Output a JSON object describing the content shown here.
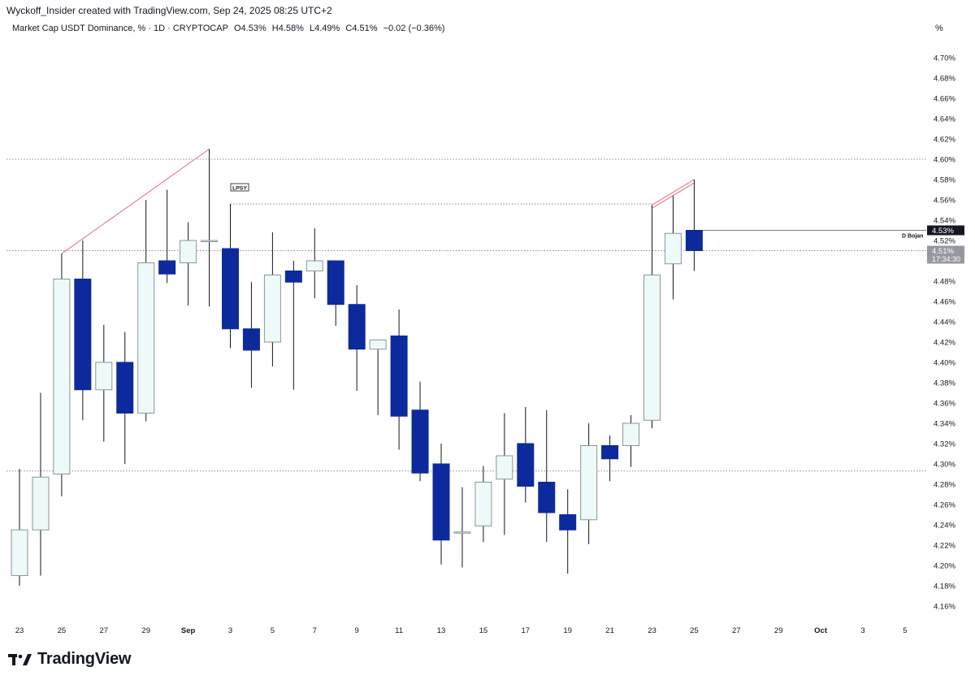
{
  "header": {
    "attribution": "Wyckoff_Insider created with TradingView.com, Sep 24, 2025 08:25 UTC+2"
  },
  "legend": {
    "symbol": "Market Cap USDT Dominance, % · 1D · CRYPTOCAP",
    "open": "O4.53%",
    "high": "H4.58%",
    "low": "L4.49%",
    "close": "C4.51%",
    "change": "−0.02 (−0.36%)"
  },
  "unit_label": "%",
  "footer": {
    "brand": "TradingView"
  },
  "colors": {
    "bull_fill": "#eef9f9",
    "bull_border": "#8a9698",
    "bear_fill": "#0d2a9c",
    "wick": "#131722",
    "trendline": "#e8808e",
    "dotted": "#8d8d96"
  },
  "chart_data": {
    "type": "candlestick",
    "ylim": [
      4.15,
      4.72
    ],
    "y_ticks": [
      "4.16%",
      "4.18%",
      "4.20%",
      "4.22%",
      "4.24%",
      "4.26%",
      "4.28%",
      "4.30%",
      "4.32%",
      "4.34%",
      "4.36%",
      "4.38%",
      "4.40%",
      "4.42%",
      "4.44%",
      "4.46%",
      "4.48%",
      "4.52%",
      "4.54%",
      "4.56%",
      "4.58%",
      "4.60%",
      "4.62%",
      "4.64%",
      "4.66%",
      "4.68%",
      "4.70%"
    ],
    "x_ticks": [
      "23",
      "25",
      "27",
      "29",
      "Sep",
      "3",
      "5",
      "7",
      "9",
      "11",
      "13",
      "15",
      "17",
      "19",
      "21",
      "23",
      "25",
      "27",
      "29",
      "Oct",
      "3",
      "5"
    ],
    "candles": [
      {
        "date": "Aug 23",
        "o": 4.19,
        "h": 4.295,
        "l": 4.18,
        "c": 4.235
      },
      {
        "date": "Aug 24",
        "o": 4.235,
        "h": 4.37,
        "l": 4.19,
        "c": 4.287
      },
      {
        "date": "Aug 25",
        "o": 4.29,
        "h": 4.507,
        "l": 4.268,
        "c": 4.482
      },
      {
        "date": "Aug 26",
        "o": 4.482,
        "h": 4.52,
        "l": 4.343,
        "c": 4.373
      },
      {
        "date": "Aug 27",
        "o": 4.373,
        "h": 4.437,
        "l": 4.322,
        "c": 4.4
      },
      {
        "date": "Aug 28",
        "o": 4.4,
        "h": 4.43,
        "l": 4.3,
        "c": 4.35
      },
      {
        "date": "Aug 29",
        "o": 4.35,
        "h": 4.56,
        "l": 4.342,
        "c": 4.498
      },
      {
        "date": "Aug 30",
        "o": 4.5,
        "h": 4.57,
        "l": 4.478,
        "c": 4.487
      },
      {
        "date": "Aug 31",
        "o": 4.498,
        "h": 4.538,
        "l": 4.456,
        "c": 4.52
      },
      {
        "date": "Sep 1",
        "o": 4.52,
        "h": 4.61,
        "l": 4.455,
        "c": 4.52
      },
      {
        "date": "Sep 2",
        "o": 4.512,
        "h": 4.556,
        "l": 4.414,
        "c": 4.433
      },
      {
        "date": "Sep 3",
        "o": 4.433,
        "h": 4.479,
        "l": 4.375,
        "c": 4.412
      },
      {
        "date": "Sep 4",
        "o": 4.42,
        "h": 4.528,
        "l": 4.396,
        "c": 4.486
      },
      {
        "date": "Sep 5",
        "o": 4.49,
        "h": 4.5,
        "l": 4.373,
        "c": 4.479
      },
      {
        "date": "Sep 6",
        "o": 4.49,
        "h": 4.532,
        "l": 4.463,
        "c": 4.5
      },
      {
        "date": "Sep 7",
        "o": 4.5,
        "h": 4.5,
        "l": 4.436,
        "c": 4.457
      },
      {
        "date": "Sep 8",
        "o": 4.457,
        "h": 4.476,
        "l": 4.372,
        "c": 4.413
      },
      {
        "date": "Sep 9",
        "o": 4.413,
        "h": 4.42,
        "l": 4.348,
        "c": 4.422
      },
      {
        "date": "Sep 10",
        "o": 4.426,
        "h": 4.452,
        "l": 4.314,
        "c": 4.347
      },
      {
        "date": "Sep 11",
        "o": 4.353,
        "h": 4.381,
        "l": 4.283,
        "c": 4.291
      },
      {
        "date": "Sep 12",
        "o": 4.3,
        "h": 4.32,
        "l": 4.201,
        "c": 4.225
      },
      {
        "date": "Sep 13",
        "o": 4.233,
        "h": 4.277,
        "l": 4.198,
        "c": 4.233
      },
      {
        "date": "Sep 14",
        "o": 4.239,
        "h": 4.298,
        "l": 4.223,
        "c": 4.282
      },
      {
        "date": "Sep 15",
        "o": 4.285,
        "h": 4.35,
        "l": 4.23,
        "c": 4.308
      },
      {
        "date": "Sep 16",
        "o": 4.32,
        "h": 4.356,
        "l": 4.262,
        "c": 4.278
      },
      {
        "date": "Sep 17",
        "o": 4.282,
        "h": 4.353,
        "l": 4.223,
        "c": 4.252
      },
      {
        "date": "Sep 18",
        "o": 4.25,
        "h": 4.275,
        "l": 4.192,
        "c": 4.235
      },
      {
        "date": "Sep 19",
        "o": 4.245,
        "h": 4.34,
        "l": 4.221,
        "c": 4.318
      },
      {
        "date": "Sep 20",
        "o": 4.318,
        "h": 4.328,
        "l": 4.283,
        "c": 4.305
      },
      {
        "date": "Sep 21",
        "o": 4.318,
        "h": 4.348,
        "l": 4.297,
        "c": 4.34
      },
      {
        "date": "Sep 22",
        "o": 4.343,
        "h": 4.555,
        "l": 4.335,
        "c": 4.486
      },
      {
        "date": "Sep 23",
        "o": 4.497,
        "h": 4.564,
        "l": 4.462,
        "c": 4.527
      },
      {
        "date": "Sep 24",
        "o": 4.53,
        "h": 4.58,
        "l": 4.49,
        "c": 4.51
      }
    ],
    "lines": {
      "upper_dotted": 4.6,
      "lpsy_level": 4.556,
      "current_price": 4.53,
      "close_level": 4.51,
      "lower_dotted": 4.293
    },
    "annotations": {
      "lpsy": "LPSY",
      "d_bojan": "D Bojan",
      "price_tag": "4.53%",
      "close_tag": "4.51%",
      "countdown": "17:34:30"
    }
  }
}
